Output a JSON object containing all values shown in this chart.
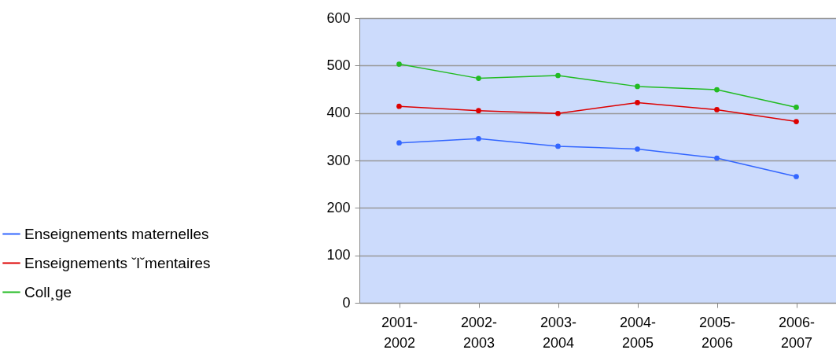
{
  "chart_data": {
    "type": "line",
    "categories": [
      "2001-2002",
      "2002-2003",
      "2003-2004",
      "2004-2005",
      "2005-2006",
      "2006-2007"
    ],
    "series": [
      {
        "name": "Enseignements maternelles",
        "color": "#3366ff",
        "values": [
          337,
          346,
          330,
          324,
          305,
          266
        ]
      },
      {
        "name": "Enseignements ˇlˇmentaires",
        "color": "#dd0000",
        "values": [
          414,
          405,
          399,
          422,
          407,
          382
        ]
      },
      {
        "name": "Coll¸ge",
        "color": "#22bb22",
        "values": [
          503,
          473,
          479,
          456,
          449,
          412
        ]
      }
    ],
    "ylim": [
      0,
      600
    ],
    "yticks": [
      0,
      100,
      200,
      300,
      400,
      500,
      600
    ],
    "grid": "y",
    "legend": "left",
    "marker": "circle",
    "line_style": "solid"
  }
}
